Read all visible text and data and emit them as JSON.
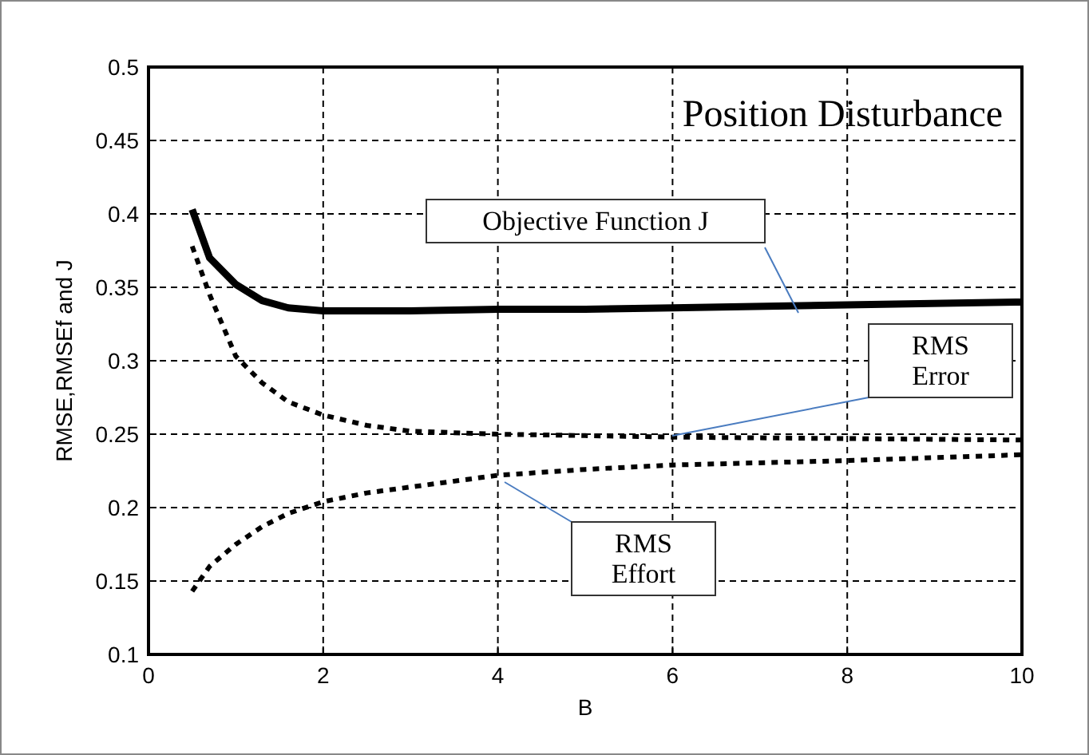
{
  "chart_data": {
    "type": "line",
    "title": "Position Disturbance",
    "xlabel": "B",
    "ylabel": "RMSE,RMSEf and J",
    "x": [
      0.5,
      0.7,
      1.0,
      1.3,
      1.6,
      2,
      2.5,
      3,
      4,
      5,
      6,
      8,
      10
    ],
    "series": [
      {
        "color": "#000000",
        "line_style": "solid",
        "values": [
          0.403,
          0.37,
          0.352,
          0.341,
          0.336,
          0.334,
          0.334,
          0.334,
          0.335,
          0.335,
          0.336,
          0.338,
          0.34
        ]
      },
      {
        "color": "#000000",
        "line_style": "dotted",
        "values": [
          0.378,
          0.345,
          0.303,
          0.285,
          0.272,
          0.263,
          0.256,
          0.252,
          0.25,
          0.249,
          0.248,
          0.247,
          0.246
        ]
      },
      {
        "color": "#000000",
        "line_style": "dotted",
        "values": [
          0.143,
          0.16,
          0.175,
          0.187,
          0.196,
          0.204,
          0.21,
          0.214,
          0.222,
          0.226,
          0.229,
          0.232,
          0.236
        ]
      }
    ],
    "annotations": [
      "Objective Function J",
      "RMS Error",
      "RMS Effort"
    ],
    "xlim": [
      0,
      10
    ],
    "ylim": [
      0.1,
      0.5
    ],
    "xticks": [
      0,
      2,
      4,
      6,
      8,
      10
    ],
    "yticks": [
      0.1,
      0.15,
      0.2,
      0.25,
      0.3,
      0.35,
      0.4,
      0.45,
      0.5
    ],
    "grid": true,
    "marker": "none"
  }
}
